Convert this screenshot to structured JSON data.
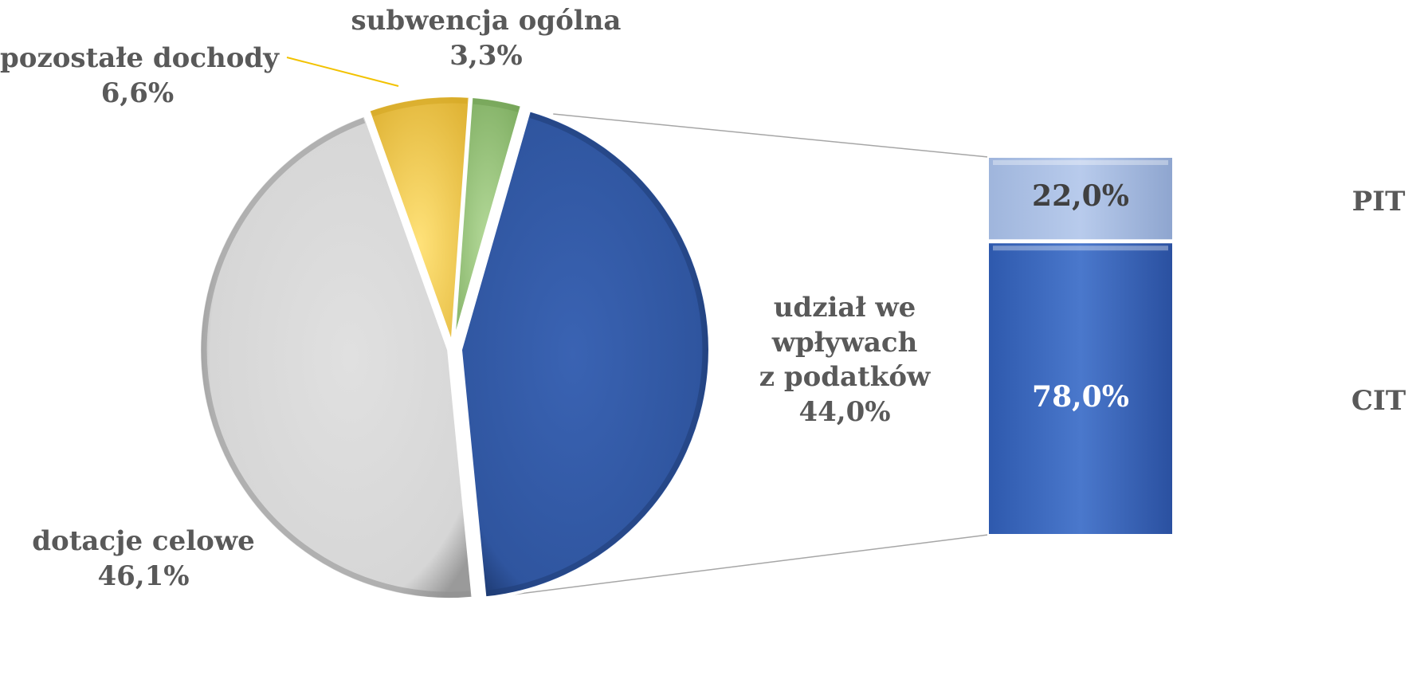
{
  "chart_data": [
    {
      "type": "pie",
      "slices": [
        {
          "label": "udział we wpływach z podatków",
          "label_lines": [
            "udział we",
            "wpływach",
            "z podatków"
          ],
          "value": 44.0,
          "value_text": "44,0%",
          "color": "#2f559f"
        },
        {
          "label": "dotacje celowe",
          "label_lines": [
            "dotacje celowe"
          ],
          "value": 46.1,
          "value_text": "46,1%",
          "color": "#d9d9d9"
        },
        {
          "label": "pozostałe dochody",
          "label_lines": [
            "pozostałe dochody"
          ],
          "value": 6.6,
          "value_text": "6,6%",
          "color": "#ffd966"
        },
        {
          "label": "subwencja ogólna",
          "label_lines": [
            "subwencja ogólna"
          ],
          "value": 3.3,
          "value_text": "3,3%",
          "color": "#a9d18e"
        }
      ],
      "exploded_slice": "udział we wpływach z podatków"
    },
    {
      "type": "bar",
      "stacked": true,
      "categories": [
        "PIT",
        "CIT"
      ],
      "values": [
        22.0,
        78.0
      ],
      "value_texts": [
        "22,0%",
        "78,0%"
      ],
      "colors": [
        "#b4c7e7",
        "#4472c4"
      ],
      "value_text_colors": [
        "#404040",
        "#ffffff"
      ]
    }
  ]
}
